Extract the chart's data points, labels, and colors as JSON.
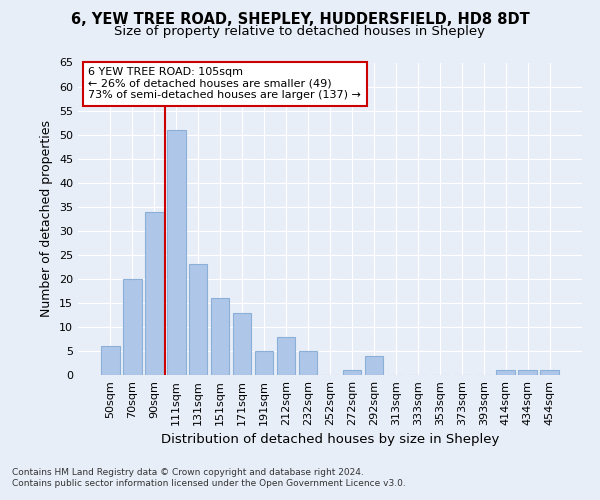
{
  "title1": "6, YEW TREE ROAD, SHEPLEY, HUDDERSFIELD, HD8 8DT",
  "title2": "Size of property relative to detached houses in Shepley",
  "xlabel": "Distribution of detached houses by size in Shepley",
  "ylabel": "Number of detached properties",
  "footnote1": "Contains HM Land Registry data © Crown copyright and database right 2024.",
  "footnote2": "Contains public sector information licensed under the Open Government Licence v3.0.",
  "categories": [
    "50sqm",
    "70sqm",
    "90sqm",
    "111sqm",
    "131sqm",
    "151sqm",
    "171sqm",
    "191sqm",
    "212sqm",
    "232sqm",
    "252sqm",
    "272sqm",
    "292sqm",
    "313sqm",
    "333sqm",
    "353sqm",
    "373sqm",
    "393sqm",
    "414sqm",
    "434sqm",
    "454sqm"
  ],
  "values": [
    6,
    20,
    34,
    51,
    23,
    16,
    13,
    5,
    8,
    5,
    0,
    1,
    4,
    0,
    0,
    0,
    0,
    0,
    1,
    1,
    1
  ],
  "bar_color": "#aec6e8",
  "bar_edge_color": "#8ab0d8",
  "vline_color": "#cc0000",
  "annotation_text": "6 YEW TREE ROAD: 105sqm\n← 26% of detached houses are smaller (49)\n73% of semi-detached houses are larger (137) →",
  "annotation_box_facecolor": "#ffffff",
  "annotation_box_edgecolor": "#cc0000",
  "ylim": [
    0,
    65
  ],
  "yticks": [
    0,
    5,
    10,
    15,
    20,
    25,
    30,
    35,
    40,
    45,
    50,
    55,
    60,
    65
  ],
  "background_color": "#e8eef8",
  "grid_color": "#ffffff",
  "title1_fontsize": 10.5,
  "title2_fontsize": 9.5,
  "axis_label_fontsize": 9,
  "tick_fontsize": 8,
  "annotation_fontsize": 8,
  "footnote_fontsize": 6.5
}
